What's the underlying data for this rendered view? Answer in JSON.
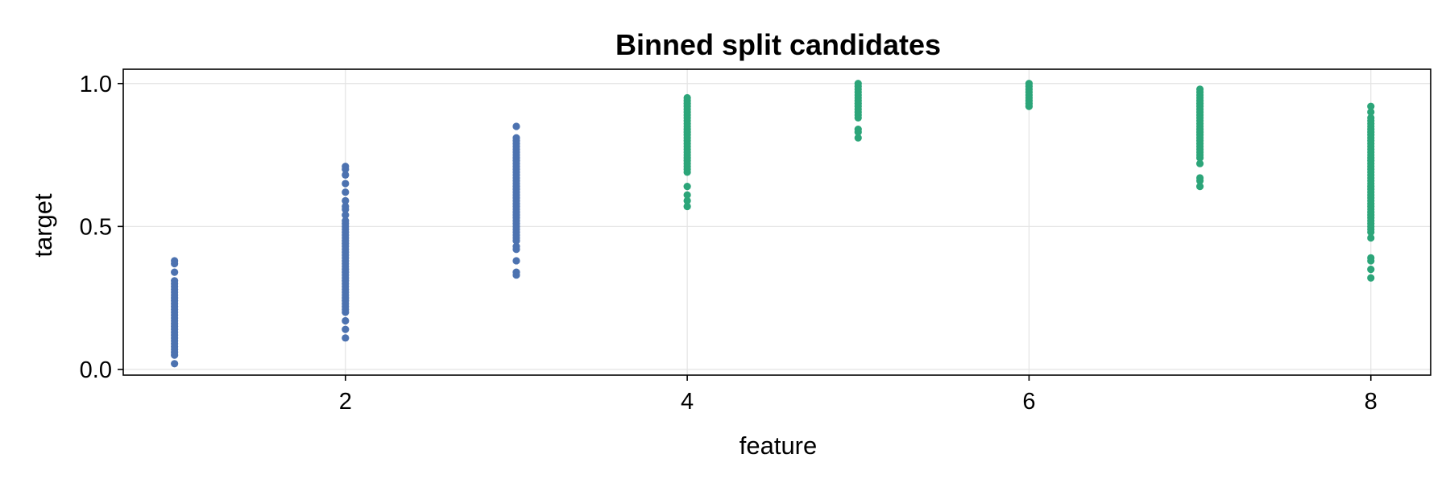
{
  "chart_data": {
    "type": "scatter",
    "title": "Binned split candidates",
    "xlabel": "feature",
    "ylabel": "target",
    "xlim": [
      0.7,
      8.35
    ],
    "ylim": [
      -0.02,
      1.05
    ],
    "xticks": [
      2,
      4,
      6,
      8
    ],
    "yticks": [
      0.0,
      0.5,
      1.0
    ],
    "xtick_labels": [
      "2",
      "4",
      "6",
      "8"
    ],
    "ytick_labels": [
      "0.0",
      "0.5",
      "1.0"
    ],
    "grid": true,
    "colors": {
      "group_a": "#4c72b0",
      "group_b": "#2ca579"
    },
    "series": [
      {
        "x": 1,
        "color": "#4c72b0",
        "y": [
          0.02,
          0.05,
          0.06,
          0.07,
          0.08,
          0.09,
          0.1,
          0.11,
          0.12,
          0.13,
          0.14,
          0.15,
          0.16,
          0.17,
          0.18,
          0.19,
          0.2,
          0.21,
          0.22,
          0.23,
          0.24,
          0.25,
          0.26,
          0.27,
          0.28,
          0.29,
          0.3,
          0.31,
          0.34,
          0.37,
          0.38
        ]
      },
      {
        "x": 2,
        "color": "#4c72b0",
        "y": [
          0.11,
          0.14,
          0.17,
          0.2,
          0.21,
          0.22,
          0.23,
          0.24,
          0.25,
          0.26,
          0.27,
          0.28,
          0.29,
          0.3,
          0.31,
          0.32,
          0.33,
          0.34,
          0.35,
          0.36,
          0.37,
          0.38,
          0.39,
          0.4,
          0.41,
          0.42,
          0.43,
          0.44,
          0.45,
          0.46,
          0.47,
          0.48,
          0.49,
          0.5,
          0.51,
          0.52,
          0.54,
          0.56,
          0.57,
          0.59,
          0.62,
          0.65,
          0.68,
          0.7,
          0.71
        ]
      },
      {
        "x": 3,
        "color": "#4c72b0",
        "y": [
          0.33,
          0.34,
          0.38,
          0.42,
          0.43,
          0.45,
          0.46,
          0.47,
          0.48,
          0.49,
          0.5,
          0.51,
          0.52,
          0.53,
          0.54,
          0.55,
          0.56,
          0.57,
          0.58,
          0.59,
          0.6,
          0.61,
          0.62,
          0.63,
          0.64,
          0.65,
          0.66,
          0.67,
          0.68,
          0.69,
          0.7,
          0.71,
          0.72,
          0.73,
          0.74,
          0.75,
          0.76,
          0.77,
          0.78,
          0.79,
          0.8,
          0.81,
          0.85
        ]
      },
      {
        "x": 4,
        "color": "#2ca579",
        "y": [
          0.57,
          0.59,
          0.61,
          0.64,
          0.69,
          0.7,
          0.71,
          0.72,
          0.73,
          0.74,
          0.75,
          0.76,
          0.77,
          0.78,
          0.79,
          0.8,
          0.81,
          0.82,
          0.83,
          0.84,
          0.85,
          0.86,
          0.87,
          0.88,
          0.89,
          0.9,
          0.91,
          0.92,
          0.93,
          0.94,
          0.95
        ]
      },
      {
        "x": 5,
        "color": "#2ca579",
        "y": [
          0.81,
          0.83,
          0.84,
          0.88,
          0.89,
          0.9,
          0.91,
          0.92,
          0.93,
          0.94,
          0.95,
          0.96,
          0.97,
          0.98,
          0.99,
          1.0
        ]
      },
      {
        "x": 6,
        "color": "#2ca579",
        "y": [
          0.92,
          0.93,
          0.94,
          0.95,
          0.96,
          0.97,
          0.98,
          0.99,
          1.0
        ]
      },
      {
        "x": 7,
        "color": "#2ca579",
        "y": [
          0.64,
          0.66,
          0.67,
          0.72,
          0.74,
          0.75,
          0.76,
          0.77,
          0.78,
          0.79,
          0.8,
          0.81,
          0.82,
          0.83,
          0.84,
          0.85,
          0.86,
          0.87,
          0.88,
          0.89,
          0.9,
          0.91,
          0.92,
          0.93,
          0.94,
          0.95,
          0.96,
          0.97,
          0.98
        ]
      },
      {
        "x": 8,
        "color": "#2ca579",
        "y": [
          0.32,
          0.35,
          0.38,
          0.39,
          0.46,
          0.48,
          0.49,
          0.5,
          0.51,
          0.52,
          0.53,
          0.54,
          0.55,
          0.56,
          0.57,
          0.58,
          0.59,
          0.6,
          0.61,
          0.62,
          0.63,
          0.64,
          0.65,
          0.66,
          0.67,
          0.68,
          0.69,
          0.7,
          0.71,
          0.72,
          0.73,
          0.74,
          0.75,
          0.76,
          0.77,
          0.78,
          0.79,
          0.8,
          0.81,
          0.82,
          0.83,
          0.84,
          0.85,
          0.86,
          0.87,
          0.88,
          0.9,
          0.92
        ]
      }
    ]
  }
}
